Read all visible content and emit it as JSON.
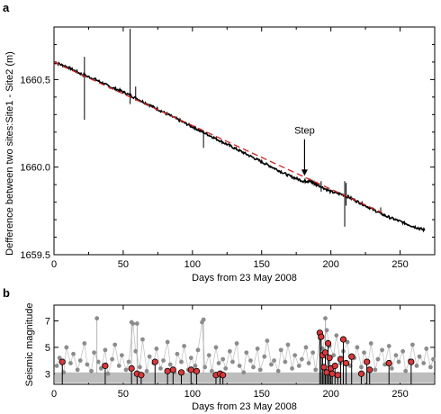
{
  "chart_data": [
    {
      "panel": "a",
      "type": "line",
      "xlabel": "Days from 23 May 2008",
      "ylabel": "Defference between two sites:Site1 - Site2 (m)",
      "xlim": [
        0,
        275
      ],
      "ylim": [
        1659.5,
        1660.8
      ],
      "xticks": [
        0,
        50,
        100,
        150,
        200,
        250
      ],
      "yticks": [
        1659.5,
        1660.0,
        1660.5
      ],
      "ytick_labels": [
        "1659.5",
        "1660.0",
        "1660.5"
      ],
      "grid": false,
      "series": [
        {
          "kind": "observed",
          "color": "#000000",
          "x": [
            0,
            10,
            20,
            30,
            40,
            50,
            60,
            70,
            80,
            90,
            100,
            110,
            120,
            130,
            140,
            150,
            160,
            170,
            180,
            185,
            190,
            200,
            210,
            220,
            230,
            240,
            250,
            260,
            268
          ],
          "y": [
            1660.6,
            1660.57,
            1660.53,
            1660.5,
            1660.46,
            1660.43,
            1660.39,
            1660.35,
            1660.31,
            1660.27,
            1660.23,
            1660.19,
            1660.15,
            1660.11,
            1660.07,
            1660.03,
            1659.99,
            1659.95,
            1659.92,
            1659.92,
            1659.9,
            1659.86,
            1659.84,
            1659.8,
            1659.76,
            1659.72,
            1659.69,
            1659.66,
            1659.64
          ]
        },
        {
          "kind": "linear-fit",
          "style": "dashed",
          "color": "#cc2222",
          "x": [
            0,
            237
          ],
          "y": [
            1660.6,
            1659.74
          ]
        }
      ],
      "spikes": [
        {
          "x": 22,
          "y_low": 1660.27,
          "y_high": 1660.63
        },
        {
          "x": 55,
          "y_low": 1660.36,
          "y_high": 1660.79
        },
        {
          "x": 59,
          "y_low": 1660.38,
          "y_high": 1660.46
        },
        {
          "x": 108,
          "y_low": 1660.11,
          "y_high": 1660.2
        },
        {
          "x": 193,
          "y_low": 1659.86,
          "y_high": 1659.92
        },
        {
          "x": 210,
          "y_low": 1659.66,
          "y_high": 1659.92
        },
        {
          "x": 211,
          "y_low": 1659.78,
          "y_high": 1659.91
        },
        {
          "x": 236,
          "y_low": 1659.73,
          "y_high": 1659.77
        }
      ],
      "annotations": [
        {
          "text": "Step",
          "x": 181,
          "y": 1660.19,
          "arrow_to_y": 1659.95
        }
      ]
    },
    {
      "panel": "b",
      "type": "scatter",
      "xlabel": "Days from 23 May 2008",
      "ylabel": "Seismic magnitude",
      "xlim": [
        0,
        275
      ],
      "ylim": [
        2.2,
        8.2
      ],
      "xticks": [
        0,
        50,
        100,
        150,
        200,
        250
      ],
      "yticks": [
        3,
        5,
        7
      ],
      "grid": false,
      "background_events": {
        "color": "#8c8c8c",
        "description_free": true,
        "x": [
          2,
          4,
          7,
          9,
          12,
          14,
          17,
          19,
          22,
          24,
          27,
          29,
          32,
          34,
          37,
          39,
          42,
          44,
          47,
          49,
          52,
          54,
          57,
          59,
          62,
          64,
          67,
          69,
          72,
          74,
          77,
          79,
          82,
          84,
          87,
          89,
          92,
          94,
          97,
          99,
          102,
          104,
          107,
          109,
          112,
          114,
          117,
          119,
          122,
          124,
          127,
          129,
          132,
          134,
          137,
          139,
          142,
          144,
          147,
          149,
          152,
          154,
          157,
          159,
          162,
          164,
          167,
          169,
          172,
          174,
          177,
          179,
          182,
          184,
          187,
          189,
          192,
          194,
          197,
          199,
          202,
          204,
          207,
          209,
          212,
          214,
          217,
          219,
          222,
          224,
          227,
          229,
          232,
          234,
          237,
          239,
          242,
          244,
          247,
          249,
          252,
          254,
          257,
          259,
          262,
          264,
          267,
          269,
          272,
          274
        ],
        "y": [
          3.6,
          4.2,
          3.1,
          5.0,
          3.8,
          4.5,
          3.3,
          4.0,
          5.3,
          3.7,
          3.2,
          4.6,
          3.9,
          3.4,
          4.8,
          3.0,
          4.1,
          5.2,
          3.6,
          4.4,
          3.3,
          3.9,
          6.8,
          4.7,
          3.5,
          5.6,
          3.2,
          4.3,
          3.8,
          4.9,
          3.4,
          4.0,
          5.4,
          3.7,
          3.1,
          4.5,
          3.9,
          5.1,
          3.3,
          4.2,
          3.6,
          4.8,
          6.9,
          3.5,
          4.4,
          3.2,
          5.0,
          3.8,
          4.1,
          3.4,
          4.7,
          3.9,
          5.3,
          3.6,
          3.1,
          4.6,
          4.0,
          3.5,
          4.9,
          3.3,
          4.3,
          5.5,
          3.7,
          4.0,
          3.2,
          4.8,
          3.9,
          5.2,
          3.4,
          4.4,
          3.6,
          4.1,
          5.0,
          3.8,
          4.6,
          3.3,
          5.7,
          4.9,
          6.3,
          5.1,
          4.4,
          5.9,
          3.8,
          4.7,
          5.4,
          3.6,
          4.2,
          5.0,
          3.5,
          4.6,
          3.9,
          5.3,
          3.3,
          4.1,
          4.8,
          3.7,
          5.1,
          3.4,
          4.4,
          3.9,
          4.7,
          3.2,
          4.0,
          5.2,
          3.6,
          4.3,
          3.8,
          4.9,
          3.5,
          4.1
        ]
      },
      "large_events_top": [
        {
          "x": 31,
          "y": 7.2
        },
        {
          "x": 56,
          "y": 6.9
        },
        {
          "x": 60,
          "y": 6.8
        },
        {
          "x": 108,
          "y": 7.1
        },
        {
          "x": 196,
          "y": 7.2
        }
      ],
      "highlighted_events": {
        "color": "#d9383a",
        "x": [
          6,
          37,
          56,
          60,
          63,
          73,
          82,
          86,
          92,
          99,
          103,
          117,
          120,
          122,
          192,
          193,
          194,
          195,
          196,
          197,
          198,
          199,
          200,
          201,
          203,
          205,
          207,
          209,
          211,
          215,
          222,
          226,
          228,
          242,
          258
        ],
        "y": [
          3.9,
          3.6,
          3.4,
          3.0,
          2.9,
          3.9,
          3.2,
          3.3,
          3.1,
          3.3,
          3.2,
          2.9,
          3.0,
          2.9,
          6.1,
          5.8,
          4.4,
          3.5,
          4.6,
          3.1,
          5.3,
          4.2,
          3.4,
          3.0,
          3.6,
          2.9,
          4.1,
          5.6,
          3.8,
          4.3,
          3.0,
          3.9,
          3.3,
          3.8,
          3.9
        ]
      }
    }
  ],
  "labels": {
    "panel_a": "a",
    "panel_b": "b",
    "step": "Step"
  }
}
